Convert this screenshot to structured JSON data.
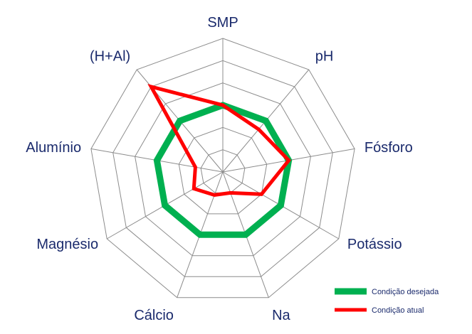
{
  "chart_data": {
    "type": "radar",
    "categories": [
      "SMP",
      "pH",
      "Fósforo",
      "Potássio",
      "Na",
      "Cálcio",
      "Magnésio",
      "Alumínio",
      "(H+Al)"
    ],
    "rings": 6,
    "rmax": 6,
    "grid": true,
    "legend": "bottom-right",
    "series": [
      {
        "name": "Condição desejada",
        "color": "#00b050",
        "values": [
          3,
          3,
          3,
          3,
          3,
          3,
          3,
          3,
          3
        ]
      },
      {
        "name": "Condição atual",
        "color": "#ff0000",
        "values": [
          3,
          2.5,
          3,
          2,
          1,
          1.1,
          1.5,
          1.25,
          5
        ]
      }
    ]
  }
}
